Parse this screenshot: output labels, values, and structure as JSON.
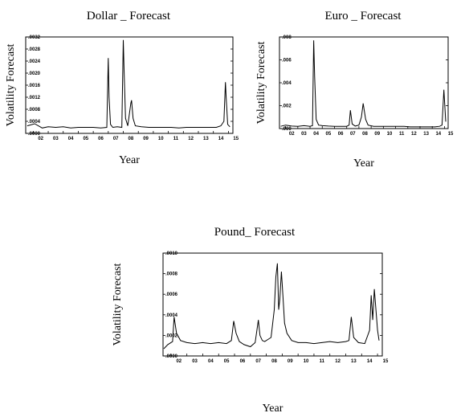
{
  "chart_data": [
    {
      "type": "line",
      "title": "Dollar _ Forecast",
      "xlabel": "Year",
      "ylabel": "Volatility Forecast",
      "x_ticks": [
        "02",
        "03",
        "04",
        "05",
        "06",
        "07",
        "08",
        "09",
        "10",
        "11",
        "12",
        "13",
        "14",
        "15"
      ],
      "y_ticks": [
        ".0000",
        ".0004",
        ".0008",
        ".0012",
        ".0016",
        ".0020",
        ".0024",
        ".0028",
        ".0032"
      ],
      "ylim": [
        0,
        0.0032
      ],
      "xlim": [
        2001.5,
        2015.3
      ],
      "grid": false,
      "color": "#000000",
      "series": [
        {
          "x": [
            2001.6,
            2002.1,
            2002.6,
            2003.0,
            2003.5,
            2004.0,
            2004.5,
            2005.0,
            2005.5,
            2006.0,
            2006.5,
            2006.9,
            2007.0,
            2007.05,
            2007.15,
            2007.3,
            2007.6,
            2007.9,
            2008.0,
            2008.05,
            2008.15,
            2008.3,
            2008.5,
            2008.55,
            2008.65,
            2008.8,
            2009.2,
            2009.7,
            2010.2,
            2010.7,
            2011.2,
            2011.7,
            2012.2,
            2012.7,
            2013.2,
            2013.7,
            2014.2,
            2014.5,
            2014.7,
            2014.8,
            2014.85,
            2014.95,
            2015.1
          ],
          "y": [
            0.00025,
            0.00032,
            0.00018,
            0.00022,
            0.0002,
            0.00022,
            0.00018,
            0.0002,
            0.0002,
            0.0002,
            0.00018,
            0.0002,
            0.0025,
            0.0012,
            0.0003,
            0.0002,
            0.00022,
            0.0002,
            0.0031,
            0.0021,
            0.0005,
            0.00025,
            0.001,
            0.0011,
            0.0005,
            0.00025,
            0.00022,
            0.0002,
            0.0002,
            0.0002,
            0.0002,
            0.00018,
            0.0002,
            0.0002,
            0.0002,
            0.0002,
            0.0002,
            0.00025,
            0.0004,
            0.0017,
            0.0012,
            0.0003,
            0.00022
          ]
        }
      ]
    },
    {
      "type": "line",
      "title": "Euro _ Forecast",
      "xlabel": "Year",
      "ylabel": "Volatility Forecast",
      "x_ticks": [
        "02",
        "03",
        "04",
        "05",
        "06",
        "07",
        "08",
        "09",
        "10",
        "11",
        "12",
        "13",
        "14",
        "15"
      ],
      "y_ticks": [
        ".000",
        ".002",
        ".004",
        ".006",
        ".008"
      ],
      "ylim": [
        0,
        0.008
      ],
      "xlim": [
        2001.5,
        2015.3
      ],
      "grid": false,
      "color": "#000000",
      "series": [
        {
          "x": [
            2001.6,
            2002.0,
            2002.5,
            2003.0,
            2003.5,
            2004.0,
            2004.2,
            2004.3,
            2004.38,
            2004.5,
            2004.7,
            2005.0,
            2005.5,
            2006.0,
            2006.5,
            2007.0,
            2007.2,
            2007.3,
            2007.45,
            2007.7,
            2008.0,
            2008.2,
            2008.35,
            2008.42,
            2008.55,
            2008.75,
            2009.2,
            2009.7,
            2010.2,
            2010.7,
            2011.2,
            2011.7,
            2012.2,
            2012.7,
            2013.2,
            2013.7,
            2014.2,
            2014.6,
            2014.8,
            2014.95,
            2015.1
          ],
          "y": [
            0.0002,
            0.0003,
            0.00022,
            0.0002,
            0.00025,
            0.0002,
            0.00025,
            0.0077,
            0.0045,
            0.0008,
            0.0003,
            0.00025,
            0.00022,
            0.0002,
            0.0002,
            0.0002,
            0.0003,
            0.0016,
            0.0004,
            0.00022,
            0.0003,
            0.001,
            0.0022,
            0.0017,
            0.0008,
            0.0003,
            0.0002,
            0.0002,
            0.0002,
            0.0002,
            0.0002,
            0.0002,
            0.00015,
            0.00015,
            0.00015,
            0.00015,
            0.00015,
            0.0002,
            0.0003,
            0.0034,
            0.0006
          ]
        }
      ]
    },
    {
      "type": "line",
      "title": "Pound_ Forecast",
      "xlabel": "Year",
      "ylabel": "Volatility Forecast",
      "x_ticks": [
        "02",
        "03",
        "04",
        "05",
        "06",
        "07",
        "08",
        "09",
        "10",
        "11",
        "12",
        "13",
        "14",
        "15"
      ],
      "y_ticks": [
        ".0000",
        ".0002",
        ".0004",
        ".0006",
        ".0008",
        ".0010"
      ],
      "ylim": [
        0,
        0.001
      ],
      "xlim": [
        2001.5,
        2015.3
      ],
      "grid": false,
      "color": "#000000",
      "series": [
        {
          "x": [
            2001.55,
            2001.8,
            2002.1,
            2002.2,
            2002.35,
            2002.6,
            2003.0,
            2003.5,
            2004.0,
            2004.5,
            2005.0,
            2005.5,
            2005.8,
            2005.95,
            2006.1,
            2006.3,
            2006.6,
            2007.0,
            2007.3,
            2007.5,
            2007.6,
            2007.75,
            2007.9,
            2008.1,
            2008.3,
            2008.5,
            2008.6,
            2008.7,
            2008.78,
            2008.85,
            2008.95,
            2009.05,
            2009.15,
            2009.3,
            2009.6,
            2010.0,
            2010.5,
            2011.0,
            2011.5,
            2012.0,
            2012.5,
            2013.0,
            2013.2,
            2013.35,
            2013.5,
            2013.8,
            2014.2,
            2014.5,
            2014.6,
            2014.7,
            2014.8,
            2014.9,
            2015.0,
            2015.1
          ],
          "y": [
            7e-05,
            0.00011,
            0.00014,
            0.00038,
            0.00022,
            0.00015,
            0.00013,
            0.00012,
            0.00013,
            0.00012,
            0.00013,
            0.00012,
            0.00015,
            0.00034,
            0.00022,
            0.00014,
            0.00011,
            9e-05,
            0.00013,
            0.00035,
            0.0002,
            0.00015,
            0.00014,
            0.00016,
            0.00018,
            0.00045,
            0.00077,
            0.0009,
            0.00045,
            0.00055,
            0.00082,
            0.00057,
            0.00032,
            0.00022,
            0.00015,
            0.00013,
            0.00013,
            0.00012,
            0.00013,
            0.00014,
            0.00013,
            0.00014,
            0.00015,
            0.00038,
            0.00018,
            0.00013,
            0.00012,
            0.00025,
            0.00059,
            0.00035,
            0.00065,
            0.00045,
            0.00025,
            0.00015
          ]
        }
      ]
    }
  ]
}
